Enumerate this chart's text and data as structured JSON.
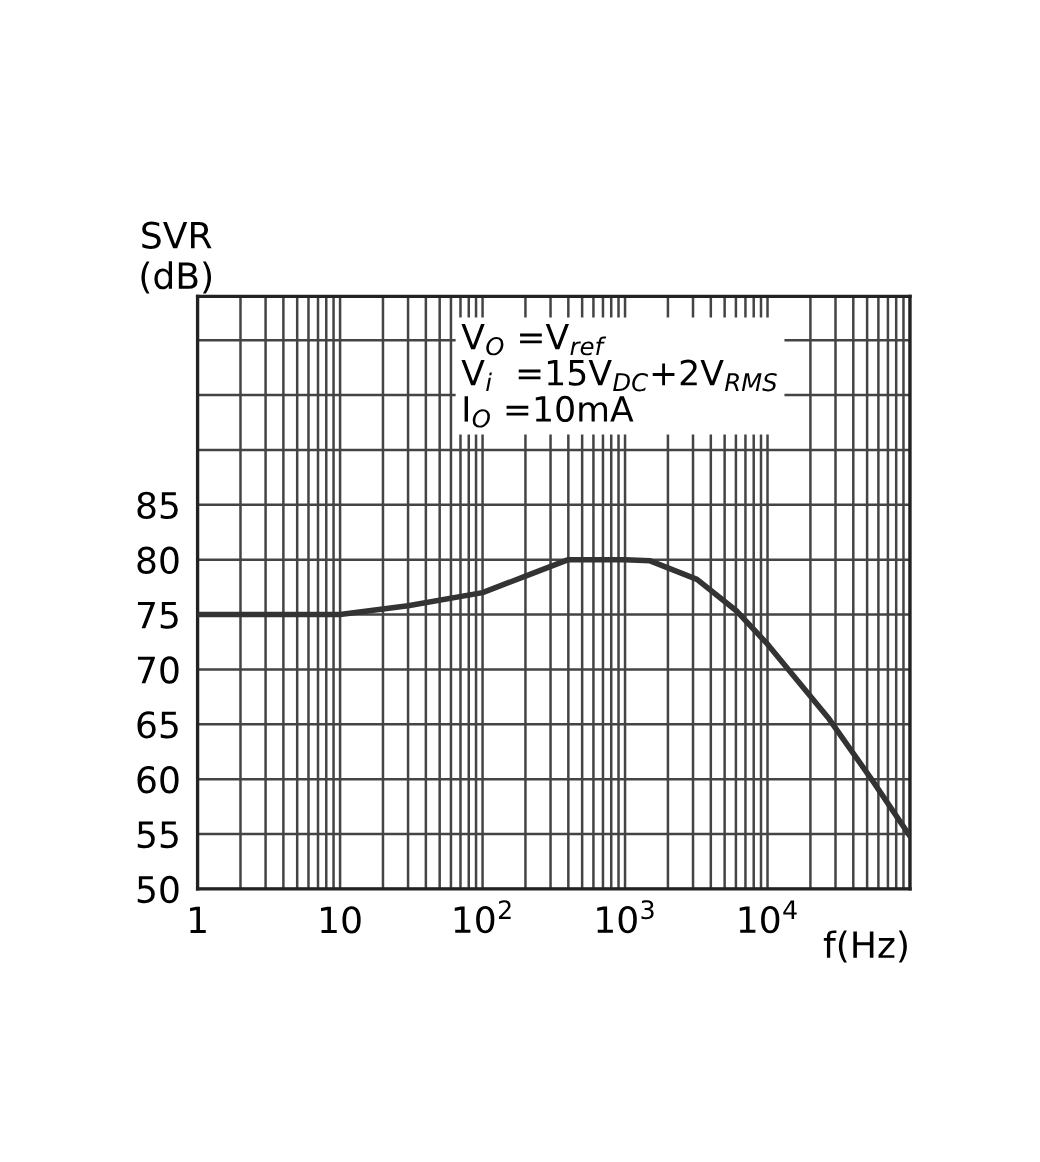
{
  "chart_data": {
    "type": "line",
    "xlabel": "f(Hz)",
    "ylabel": "SVR\n(dB)",
    "annotations": [
      "V$_{O}$ =V$_{ref}$\nV$_{i}$  =15V$_{DC}$+2V$_{RMS}$\nI$_{O}$ =10mA"
    ],
    "log": "x",
    "grid": true,
    "color": "#333333",
    "line_style": "solid",
    "marker": "none",
    "x": [
      1,
      3,
      10,
      30,
      100,
      200,
      400,
      1000,
      1500,
      3200,
      6100,
      10000,
      27000,
      55000,
      100000
    ],
    "values": [
      75,
      75,
      75,
      75.8,
      77,
      78.5,
      80,
      80,
      79.9,
      78.2,
      75.3,
      72.3,
      65.5,
      59.8,
      54.8
    ],
    "xlim": [
      1,
      100000
    ],
    "ylim": [
      50,
      104
    ],
    "xticks": [
      1,
      10,
      {
        "value": 100,
        "label": "10$^{2}$"
      },
      {
        "value": 1000,
        "label": "10$^{3}$"
      },
      {
        "value": 10000,
        "label": "10$^{4}$"
      },
      {
        "value": 100000,
        "label": null
      }
    ],
    "yticks": [
      50,
      55,
      60,
      65,
      70,
      75,
      80,
      85,
      {
        "value": 90,
        "label": null
      },
      {
        "value": 95,
        "label": null
      },
      {
        "value": 100,
        "label": null
      }
    ]
  }
}
